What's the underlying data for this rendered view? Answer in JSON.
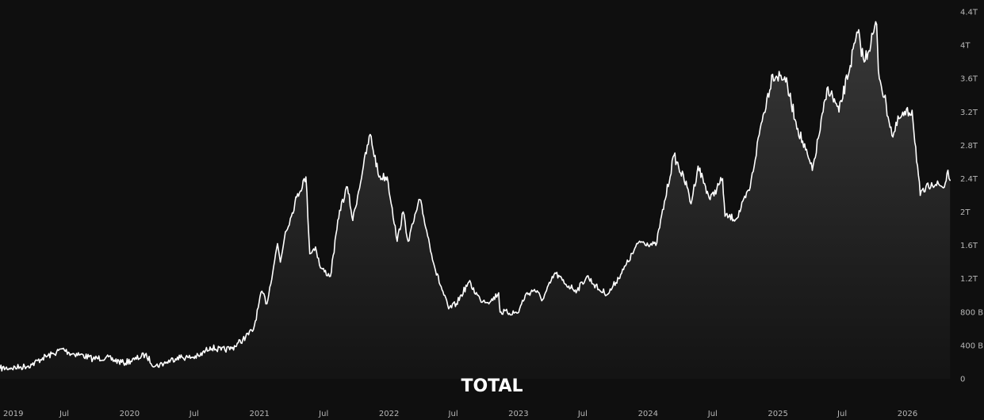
{
  "chart_data": {
    "type": "area",
    "title": "TOTAL",
    "y_unit": "USD",
    "ylim": [
      0,
      4400000000000
    ],
    "y_tick_values": [
      0,
      400000000000,
      800000000000,
      1200000000000,
      1600000000000,
      2000000000000,
      2400000000000,
      2800000000000,
      3200000000000,
      3600000000000,
      4000000000000,
      4400000000000
    ],
    "y_tick_labels": [
      "0",
      "400 B",
      "800 B",
      "1.2T",
      "1.6T",
      "2T",
      "2.4T",
      "2.8T",
      "3.2T",
      "3.6T",
      "4T",
      "4.4T"
    ],
    "x_range": [
      "2019-01-01",
      "2026-05-05"
    ],
    "x_ticks": [
      {
        "date": "2019-01-01",
        "label": "2019"
      },
      {
        "date": "2019-07-01",
        "label": "Jul"
      },
      {
        "date": "2020-01-01",
        "label": "2020"
      },
      {
        "date": "2020-07-01",
        "label": "Jul"
      },
      {
        "date": "2021-01-01",
        "label": "2021"
      },
      {
        "date": "2021-07-01",
        "label": "Jul"
      },
      {
        "date": "2022-01-01",
        "label": "2022"
      },
      {
        "date": "2022-07-01",
        "label": "Jul"
      },
      {
        "date": "2023-01-01",
        "label": "2023"
      },
      {
        "date": "2023-07-01",
        "label": "Jul"
      },
      {
        "date": "2024-01-01",
        "label": "2024"
      },
      {
        "date": "2024-07-01",
        "label": "Jul"
      },
      {
        "date": "2025-01-01",
        "label": "2025"
      },
      {
        "date": "2025-07-01",
        "label": "Jul"
      },
      {
        "date": "2026-01-01",
        "label": "2026"
      }
    ],
    "grid": false,
    "legend": "none",
    "colors": {
      "background": "#0f0f0f",
      "line": "#ffffff",
      "area_top": "#3a3a3a",
      "area_bottom": "#141414",
      "tick_text": "#b8b8b8"
    },
    "series": [
      {
        "points": [
          [
            "2019-01-01",
            125000000000
          ],
          [
            "2019-02-01",
            130000000000
          ],
          [
            "2019-03-01",
            140000000000
          ],
          [
            "2019-04-01",
            170000000000
          ],
          [
            "2019-05-01",
            250000000000
          ],
          [
            "2019-06-01",
            300000000000
          ],
          [
            "2019-06-26",
            360000000000
          ],
          [
            "2019-07-15",
            310000000000
          ],
          [
            "2019-08-15",
            290000000000
          ],
          [
            "2019-09-20",
            240000000000
          ],
          [
            "2019-10-26",
            255000000000
          ],
          [
            "2019-12-15",
            190000000000
          ],
          [
            "2020-01-15",
            230000000000
          ],
          [
            "2020-02-14",
            290000000000
          ],
          [
            "2020-03-13",
            150000000000
          ],
          [
            "2020-04-15",
            200000000000
          ],
          [
            "2020-05-15",
            260000000000
          ],
          [
            "2020-06-15",
            255000000000
          ],
          [
            "2020-07-15",
            270000000000
          ],
          [
            "2020-08-15",
            380000000000
          ],
          [
            "2020-09-15",
            345000000000
          ],
          [
            "2020-10-15",
            365000000000
          ],
          [
            "2020-11-15",
            470000000000
          ],
          [
            "2020-12-15",
            590000000000
          ],
          [
            "2021-01-08",
            1050000000000
          ],
          [
            "2021-01-22",
            900000000000
          ],
          [
            "2021-02-21",
            1620000000000
          ],
          [
            "2021-03-01",
            1400000000000
          ],
          [
            "2021-03-15",
            1760000000000
          ],
          [
            "2021-04-01",
            1950000000000
          ],
          [
            "2021-04-16",
            2180000000000
          ],
          [
            "2021-05-12",
            2420000000000
          ],
          [
            "2021-05-23",
            1500000000000
          ],
          [
            "2021-06-08",
            1580000000000
          ],
          [
            "2021-06-22",
            1330000000000
          ],
          [
            "2021-07-20",
            1230000000000
          ],
          [
            "2021-08-15",
            2020000000000
          ],
          [
            "2021-09-06",
            2300000000000
          ],
          [
            "2021-09-21",
            1900000000000
          ],
          [
            "2021-10-21",
            2550000000000
          ],
          [
            "2021-11-09",
            2930000000000
          ],
          [
            "2021-12-04",
            2420000000000
          ],
          [
            "2021-12-27",
            2420000000000
          ],
          [
            "2022-01-10",
            2050000000000
          ],
          [
            "2022-01-24",
            1650000000000
          ],
          [
            "2022-02-10",
            2000000000000
          ],
          [
            "2022-02-24",
            1650000000000
          ],
          [
            "2022-03-29",
            2150000000000
          ],
          [
            "2022-05-12",
            1300000000000
          ],
          [
            "2022-06-18",
            840000000000
          ],
          [
            "2022-07-10",
            900000000000
          ],
          [
            "2022-08-14",
            1160000000000
          ],
          [
            "2022-09-15",
            950000000000
          ],
          [
            "2022-10-15",
            930000000000
          ],
          [
            "2022-11-06",
            1030000000000
          ],
          [
            "2022-11-10",
            800000000000
          ],
          [
            "2022-12-30",
            790000000000
          ],
          [
            "2023-01-20",
            1000000000000
          ],
          [
            "2023-02-15",
            1070000000000
          ],
          [
            "2023-03-10",
            950000000000
          ],
          [
            "2023-04-14",
            1270000000000
          ],
          [
            "2023-05-15",
            1130000000000
          ],
          [
            "2023-06-15",
            1060000000000
          ],
          [
            "2023-07-13",
            1230000000000
          ],
          [
            "2023-08-18",
            1060000000000
          ],
          [
            "2023-09-11",
            1020000000000
          ],
          [
            "2023-10-24",
            1310000000000
          ],
          [
            "2023-12-08",
            1650000000000
          ],
          [
            "2024-01-23",
            1600000000000
          ],
          [
            "2024-03-14",
            2680000000000
          ],
          [
            "2024-04-20",
            2300000000000
          ],
          [
            "2024-05-01",
            2100000000000
          ],
          [
            "2024-05-21",
            2550000000000
          ],
          [
            "2024-06-24",
            2150000000000
          ],
          [
            "2024-07-29",
            2400000000000
          ],
          [
            "2024-08-05",
            1950000000000
          ],
          [
            "2024-09-06",
            1920000000000
          ],
          [
            "2024-10-15",
            2300000000000
          ],
          [
            "2024-11-12",
            3000000000000
          ],
          [
            "2024-12-17",
            3650000000000
          ],
          [
            "2025-01-20",
            3620000000000
          ],
          [
            "2025-02-26",
            3000000000000
          ],
          [
            "2025-04-08",
            2500000000000
          ],
          [
            "2025-05-22",
            3500000000000
          ],
          [
            "2025-06-22",
            3200000000000
          ],
          [
            "2025-08-14",
            4150000000000
          ],
          [
            "2025-09-01",
            3800000000000
          ],
          [
            "2025-10-06",
            4250000000000
          ],
          [
            "2025-10-11",
            3700000000000
          ],
          [
            "2025-11-21",
            2900000000000
          ],
          [
            "2025-12-08",
            3120000000000
          ],
          [
            "2026-01-14",
            3220000000000
          ],
          [
            "2026-02-06",
            2200000000000
          ],
          [
            "2026-03-10",
            2350000000000
          ],
          [
            "2026-04-15",
            2300000000000
          ],
          [
            "2026-04-25",
            2500000000000
          ],
          [
            "2026-05-01",
            2380000000000
          ]
        ]
      }
    ]
  }
}
